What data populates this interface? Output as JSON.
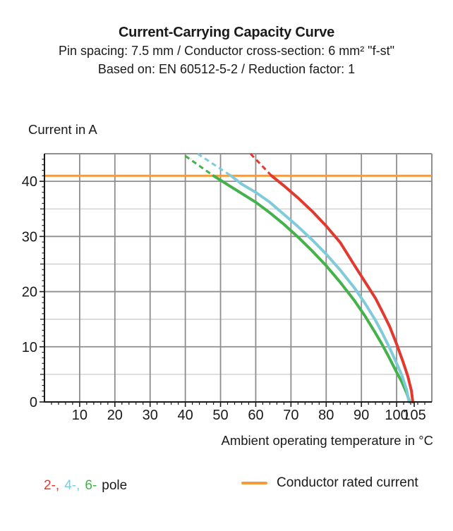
{
  "header": {
    "title": "Current-Carrying Capacity Curve",
    "subtitle_line1": "Pin spacing: 7.5 mm / Conductor cross-section: 6 mm² \"f-st\"",
    "subtitle_line2": "Based on: EN 60512-5-2 / Reduction factor: 1"
  },
  "legend": {
    "poles": [
      {
        "label": "2-,",
        "color": "#e2382d"
      },
      {
        "label": "4-,",
        "color": "#7fcbd9"
      },
      {
        "label": "6-",
        "color": "#44b14b"
      }
    ],
    "poles_suffix": "pole",
    "rated_label": "Conductor rated current",
    "rated_color": "#f59b3d"
  },
  "chart_data": {
    "type": "line",
    "title": "Current-Carrying Capacity Curve",
    "xlabel": "Ambient operating temperature in °C",
    "ylabel": "Current in A",
    "xlim": [
      0,
      110
    ],
    "ylim": [
      0,
      45
    ],
    "x_ticks": [
      10,
      20,
      30,
      40,
      50,
      60,
      70,
      80,
      90,
      100,
      105
    ],
    "y_ticks": [
      0,
      10,
      20,
      30,
      40
    ],
    "x_gridlines": [
      10,
      20,
      30,
      40,
      50,
      60,
      70,
      80,
      90,
      100
    ],
    "y_gridlines_major": [
      10,
      20,
      30,
      40
    ],
    "y_gridlines_minor": [
      5,
      15,
      25,
      35
    ],
    "x_minor_tick_step": 2,
    "y_minor_tick_step": 1,
    "grid": true,
    "legend_position": "bottom",
    "rated_current": {
      "value": 41,
      "color": "#f59b3d",
      "label": "Conductor rated current"
    },
    "colors": {
      "grid_major": "#8e8e8e",
      "grid_minor": "#cccccc",
      "axis": "#1a1a1a",
      "frame": "#8e8e8e"
    },
    "series": [
      {
        "name": "6-pole",
        "color": "#44b14b",
        "dashed_points": [
          [
            40,
            44.6
          ],
          [
            48,
            41
          ]
        ],
        "solid_points": [
          [
            48,
            41
          ],
          [
            52,
            39.4
          ],
          [
            56,
            37.8
          ],
          [
            60,
            36.2
          ],
          [
            64,
            34.3
          ],
          [
            68,
            32.2
          ],
          [
            72,
            29.9
          ],
          [
            76,
            27.4
          ],
          [
            80,
            24.7
          ],
          [
            84,
            21.7
          ],
          [
            88,
            18.4
          ],
          [
            91,
            15.6
          ],
          [
            94,
            12.5
          ],
          [
            96,
            10.3
          ],
          [
            98,
            7.9
          ],
          [
            100,
            5.4
          ],
          [
            101.5,
            3.6
          ],
          [
            102.8,
            1.7
          ],
          [
            103.7,
            0
          ]
        ]
      },
      {
        "name": "4-pole",
        "color": "#7fcbd9",
        "dashed_points": [
          [
            43.5,
            45
          ],
          [
            53,
            41
          ]
        ],
        "solid_points": [
          [
            53,
            41
          ],
          [
            56,
            39.5
          ],
          [
            60,
            38.0
          ],
          [
            64,
            36.2
          ],
          [
            68,
            34.0
          ],
          [
            72,
            31.8
          ],
          [
            76,
            29.4
          ],
          [
            80,
            26.8
          ],
          [
            84,
            23.9
          ],
          [
            88,
            20.7
          ],
          [
            91,
            17.9
          ],
          [
            94,
            14.8
          ],
          [
            96,
            12.4
          ],
          [
            98,
            9.8
          ],
          [
            100,
            7.0
          ],
          [
            101.5,
            4.8
          ],
          [
            102.8,
            2.3
          ],
          [
            103.5,
            0
          ]
        ]
      },
      {
        "name": "2-pole",
        "color": "#e2382d",
        "dashed_points": [
          [
            58.5,
            45
          ],
          [
            64.5,
            41
          ]
        ],
        "solid_points": [
          [
            64.5,
            41
          ],
          [
            68,
            39.2
          ],
          [
            72,
            37.0
          ],
          [
            76,
            34.6
          ],
          [
            80,
            31.9
          ],
          [
            84,
            28.9
          ],
          [
            88,
            24.8
          ],
          [
            91,
            21.8
          ],
          [
            94,
            18.8
          ],
          [
            96,
            16.3
          ],
          [
            98,
            13.7
          ],
          [
            100,
            10.5
          ],
          [
            101.8,
            7.3
          ],
          [
            103.2,
            4.6
          ],
          [
            104.2,
            2.0
          ],
          [
            104.6,
            0
          ]
        ]
      }
    ]
  }
}
